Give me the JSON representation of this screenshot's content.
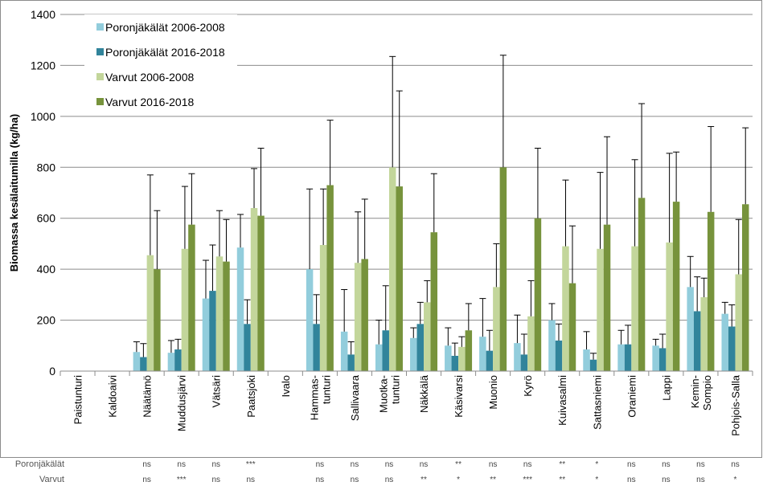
{
  "chart_data": {
    "type": "bar",
    "title": "",
    "xlabel": "",
    "ylabel": "Biomassa kesälaitumilla (kg/ha)",
    "ylim": [
      0,
      1400
    ],
    "yticks": [
      0,
      200,
      400,
      600,
      800,
      1000,
      1200,
      1400
    ],
    "grid": true,
    "legend_position": "top-left",
    "categories": [
      [
        "Paistunturi"
      ],
      [
        "Kaldoaivi"
      ],
      [
        "Näätämö"
      ],
      [
        "Muddusjärvi"
      ],
      [
        "Vätsäri"
      ],
      [
        "Paatsjoki"
      ],
      [
        "Ivalo"
      ],
      [
        "Hammas-",
        "tunturi"
      ],
      [
        "Sallivaara"
      ],
      [
        "Muotka-",
        "tunturi"
      ],
      [
        "Näkkälä"
      ],
      [
        "Käsivarsi"
      ],
      [
        "Muonio"
      ],
      [
        "Kyrö"
      ],
      [
        "Kuivasalmi"
      ],
      [
        "Sattasniemi"
      ],
      [
        "Oraniemi"
      ],
      [
        "Lappi"
      ],
      [
        "Kemin-",
        "Sompio"
      ],
      [
        "Pohjois-Salla"
      ]
    ],
    "series": [
      {
        "name": "Poronjäkälät 2006-2008",
        "color": "#92cddc",
        "values": [
          null,
          null,
          75,
          72,
          285,
          485,
          null,
          400,
          155,
          105,
          130,
          100,
          135,
          110,
          200,
          85,
          105,
          100,
          330,
          225
        ],
        "error_upper": [
          null,
          null,
          115,
          120,
          435,
          615,
          null,
          715,
          320,
          200,
          170,
          170,
          285,
          220,
          265,
          155,
          160,
          125,
          450,
          270
        ]
      },
      {
        "name": "Poronjäkälät 2016-2018",
        "color": "#31849b",
        "values": [
          null,
          null,
          55,
          85,
          315,
          185,
          null,
          185,
          65,
          160,
          185,
          60,
          80,
          65,
          120,
          45,
          105,
          90,
          235,
          175
        ],
        "error_upper": [
          null,
          null,
          108,
          125,
          495,
          280,
          null,
          300,
          115,
          335,
          270,
          110,
          160,
          145,
          185,
          70,
          180,
          145,
          370,
          260
        ]
      },
      {
        "name": "Varvut 2006-2008",
        "color": "#c3d69b",
        "values": [
          null,
          null,
          455,
          480,
          450,
          640,
          null,
          495,
          425,
          800,
          270,
          95,
          330,
          215,
          490,
          480,
          490,
          505,
          290,
          380
        ],
        "error_upper": [
          null,
          null,
          770,
          725,
          630,
          795,
          null,
          715,
          625,
          1235,
          355,
          135,
          500,
          355,
          750,
          780,
          830,
          855,
          365,
          595
        ]
      },
      {
        "name": "Varvut 2016-2018",
        "color": "#77933c",
        "values": [
          null,
          null,
          400,
          575,
          430,
          610,
          null,
          730,
          440,
          725,
          545,
          160,
          800,
          600,
          345,
          575,
          680,
          665,
          625,
          655
        ],
        "error_upper": [
          null,
          null,
          630,
          775,
          595,
          875,
          null,
          985,
          675,
          1100,
          775,
          265,
          1240,
          875,
          570,
          920,
          1050,
          860,
          960,
          955
        ]
      }
    ],
    "significance": {
      "row_labels": [
        "Poronjäkälät",
        "Varvut"
      ],
      "lichens": [
        "",
        "",
        "ns",
        "ns",
        "ns",
        "***",
        "",
        "ns",
        "ns",
        "ns",
        "ns",
        "**",
        "ns",
        "ns",
        "**",
        "*",
        "ns",
        "ns",
        "ns",
        "ns"
      ],
      "shrubs": [
        "",
        "",
        "ns",
        "***",
        "ns",
        "ns",
        "",
        "ns",
        "ns",
        "ns",
        "**",
        "*",
        "**",
        "***",
        "**",
        "*",
        "ns",
        "ns",
        "ns",
        "*"
      ]
    }
  }
}
